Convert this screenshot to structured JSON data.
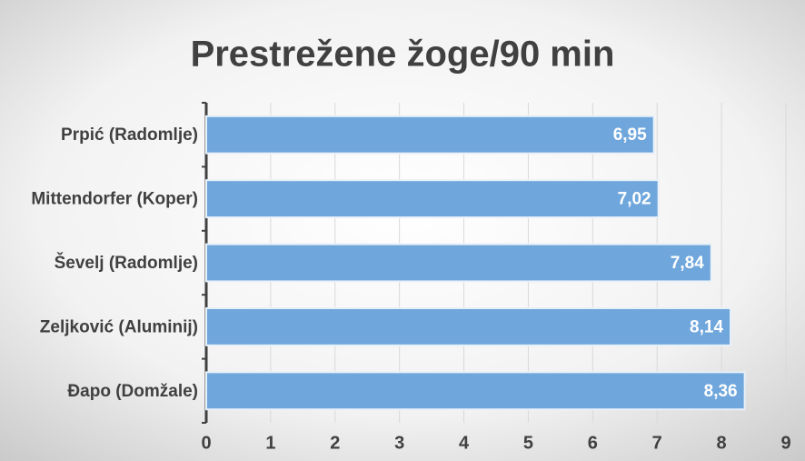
{
  "chart_data": {
    "type": "bar",
    "title": "Prestrežene žoge/90 min",
    "categories": [
      "Prpić (Radomlje)",
      "Mittendorfer (Koper)",
      "Ševelj (Radomlje)",
      "Zeljković (Aluminij)",
      "Đapo (Domžale)"
    ],
    "values": [
      6.95,
      7.02,
      7.84,
      8.14,
      8.36
    ],
    "value_labels": [
      "6,95",
      "7,02",
      "7,84",
      "8,14",
      "8,36"
    ],
    "color": "#6fa6dc",
    "xlim": [
      0,
      9
    ],
    "xticks": [
      0,
      1,
      2,
      3,
      4,
      5,
      6,
      7,
      8,
      9
    ],
    "grid": true
  }
}
